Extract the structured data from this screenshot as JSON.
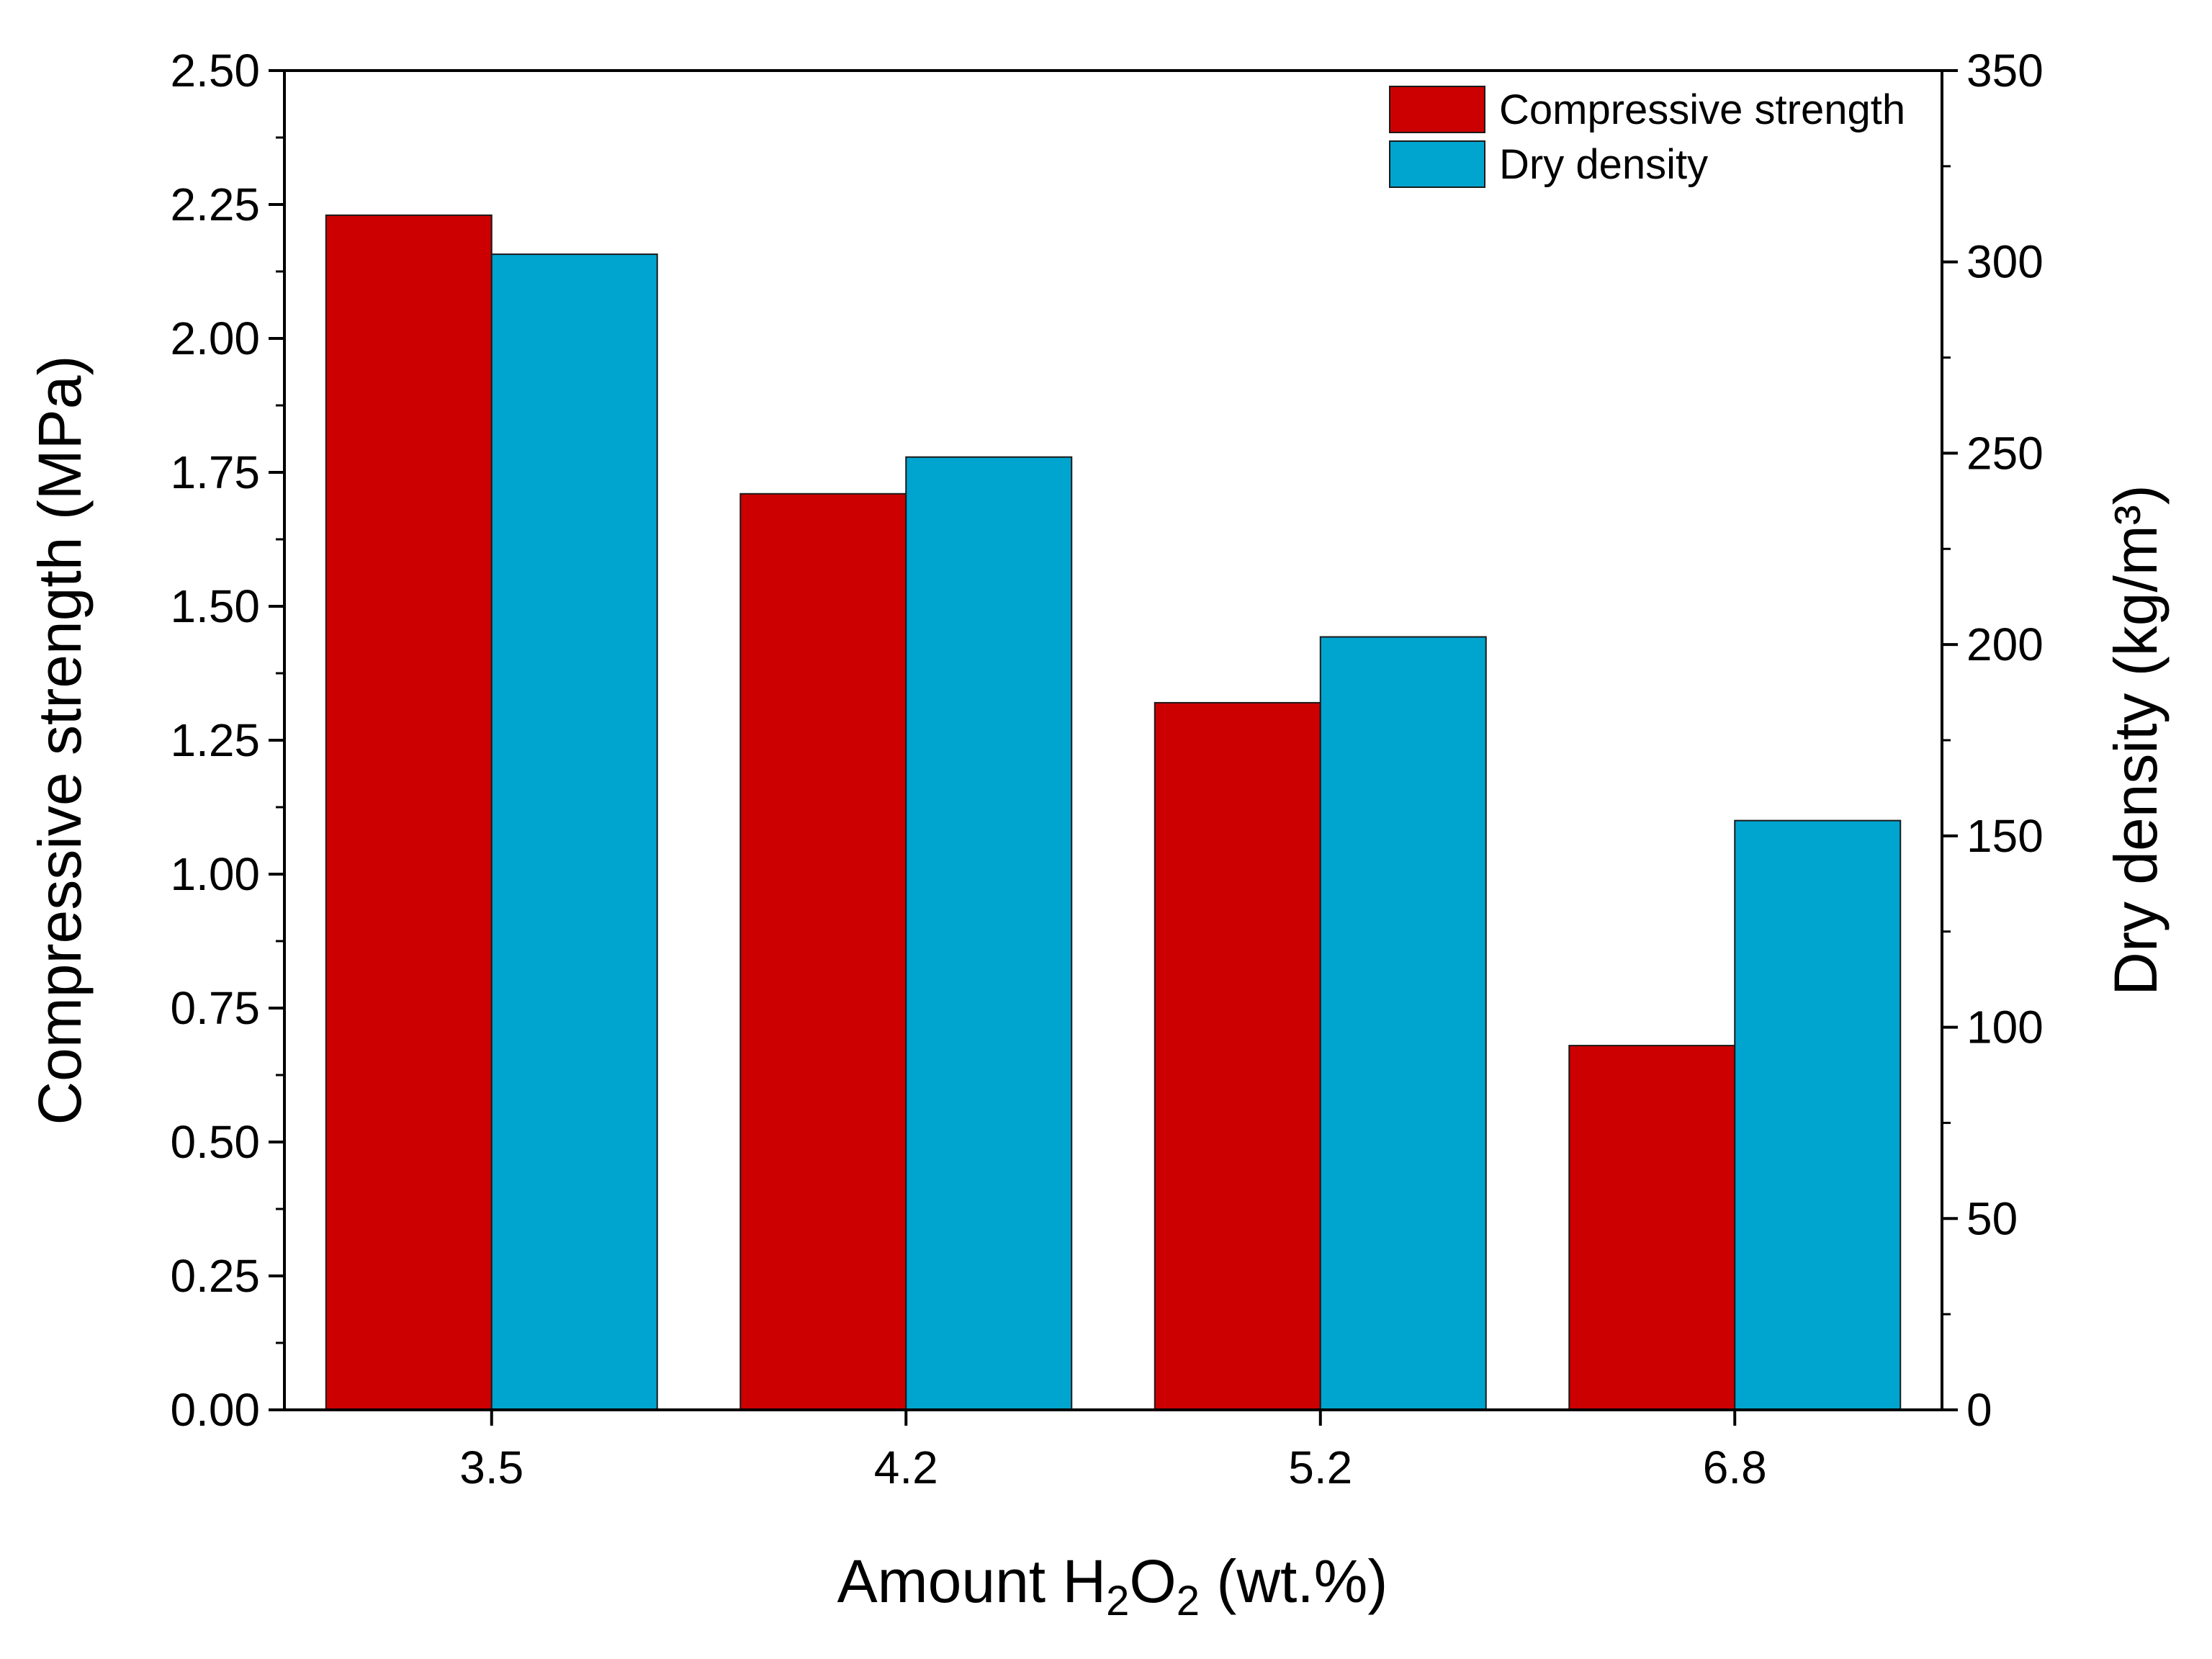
{
  "chart_data": {
    "type": "bar",
    "categories": [
      "3.5",
      "4.2",
      "5.2",
      "6.8"
    ],
    "series": [
      {
        "name": "Compressive strength",
        "axis": "left",
        "color": "#cc0000",
        "values": [
          2.23,
          1.71,
          1.32,
          0.68
        ]
      },
      {
        "name": "Dry density",
        "axis": "right",
        "color": "#00a5cf",
        "values": [
          302,
          249,
          202,
          154
        ]
      }
    ],
    "xlabel": {
      "prefix": "Amount H",
      "sub1": "2",
      "mid": "O",
      "sub2": "2",
      "suffix": " (wt.%)"
    },
    "ylabel_left": "Compressive strength (MPa)",
    "ylabel_right": "Dry density (kg/m³)",
    "ylim_left": [
      0,
      2.5
    ],
    "ylim_right": [
      0,
      350
    ],
    "yticks_left": [
      "0.00",
      "0.25",
      "0.50",
      "0.75",
      "1.00",
      "1.25",
      "1.50",
      "1.75",
      "2.00",
      "2.25",
      "2.50"
    ],
    "yticks_right": [
      "0",
      "50",
      "100",
      "150",
      "200",
      "250",
      "300",
      "350"
    ],
    "grid": false,
    "legend_position": "top-right"
  }
}
